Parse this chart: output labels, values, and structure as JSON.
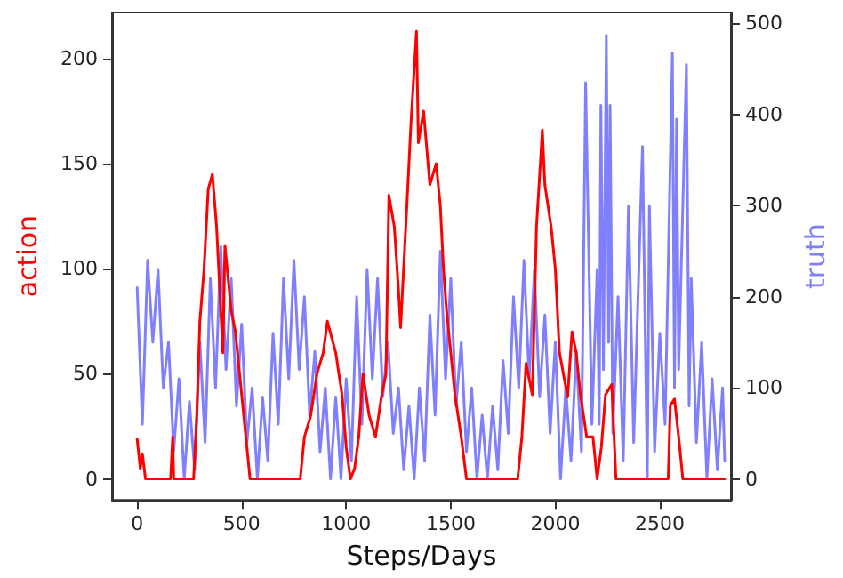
{
  "chart_data": {
    "type": "line",
    "xlabel": "Steps/Days",
    "ylabel": "action",
    "y2label": "truth",
    "xlim": [
      -120,
      2840
    ],
    "xticks": [
      0,
      500,
      1000,
      1500,
      2000,
      2500
    ],
    "ylim": [
      -10,
      222
    ],
    "yticks": [
      0,
      50,
      100,
      150,
      200
    ],
    "y2lim": [
      -23,
      512
    ],
    "y2ticks": [
      0,
      100,
      200,
      300,
      400,
      500
    ],
    "grid": false,
    "legend": false,
    "marker": "none",
    "line_style": "solid",
    "series": [
      {
        "color": "#8080ff",
        "axis": "y2",
        "x": [
          0,
          25,
          50,
          75,
          100,
          125,
          150,
          175,
          200,
          225,
          250,
          275,
          300,
          325,
          350,
          375,
          400,
          425,
          450,
          475,
          500,
          525,
          550,
          575,
          600,
          625,
          650,
          675,
          700,
          725,
          750,
          775,
          800,
          825,
          850,
          875,
          900,
          925,
          950,
          975,
          1000,
          1025,
          1050,
          1075,
          1100,
          1125,
          1150,
          1175,
          1200,
          1225,
          1250,
          1275,
          1300,
          1325,
          1350,
          1375,
          1400,
          1425,
          1450,
          1475,
          1500,
          1525,
          1550,
          1575,
          1600,
          1625,
          1650,
          1675,
          1700,
          1725,
          1750,
          1775,
          1800,
          1825,
          1850,
          1875,
          1900,
          1925,
          1950,
          1975,
          2000,
          2025,
          2050,
          2075,
          2100,
          2125,
          2145,
          2175,
          2200,
          2210,
          2218,
          2230,
          2244,
          2255,
          2262,
          2275,
          2300,
          2325,
          2350,
          2375,
          2417,
          2440,
          2450,
          2475,
          2500,
          2525,
          2560,
          2570,
          2580,
          2590,
          2627,
          2640,
          2650,
          2675,
          2700,
          2725,
          2750,
          2775,
          2800,
          2810
        ],
        "values": [
          210,
          60,
          240,
          150,
          230,
          100,
          150,
          30,
          110,
          0,
          85,
          10,
          150,
          40,
          220,
          100,
          255,
          120,
          220,
          80,
          170,
          40,
          100,
          0,
          90,
          20,
          160,
          60,
          220,
          110,
          240,
          120,
          200,
          70,
          140,
          30,
          100,
          0,
          90,
          0,
          110,
          20,
          200,
          60,
          230,
          110,
          220,
          90,
          150,
          50,
          100,
          10,
          80,
          0,
          100,
          20,
          180,
          70,
          250,
          110,
          220,
          80,
          150,
          30,
          100,
          0,
          70,
          0,
          80,
          10,
          130,
          50,
          200,
          100,
          240,
          110,
          230,
          90,
          180,
          50,
          150,
          0,
          100,
          20,
          140,
          30,
          435,
          60,
          230,
          60,
          410,
          120,
          487,
          150,
          410,
          50,
          200,
          20,
          300,
          40,
          365,
          0,
          300,
          30,
          160,
          60,
          467,
          100,
          395,
          120,
          455,
          80,
          220,
          40,
          150,
          0,
          110,
          10,
          100,
          20
        ]
      },
      {
        "color": "#ff0000",
        "axis": "y",
        "x": [
          0,
          15,
          25,
          40,
          160,
          170,
          175,
          270,
          285,
          300,
          320,
          340,
          360,
          380,
          395,
          410,
          420,
          450,
          470,
          500,
          520,
          540,
          780,
          800,
          830,
          860,
          890,
          910,
          950,
          980,
          1000,
          1020,
          1040,
          1060,
          1080,
          1110,
          1140,
          1170,
          1190,
          1204,
          1230,
          1250,
          1260,
          1290,
          1310,
          1336,
          1345,
          1370,
          1400,
          1430,
          1450,
          1465,
          1480,
          1500,
          1520,
          1550,
          1575,
          1820,
          1840,
          1860,
          1890,
          1910,
          1938,
          1950,
          1980,
          2000,
          2020,
          2059,
          2080,
          2100,
          2120,
          2150,
          2180,
          2200,
          2220,
          2240,
          2270,
          2290,
          2540,
          2550,
          2570,
          2590,
          2610,
          2810
        ],
        "values": [
          19,
          5,
          12,
          0,
          0,
          20,
          0,
          0,
          30,
          75,
          100,
          138,
          145,
          120,
          90,
          60,
          111,
          80,
          70,
          40,
          20,
          0,
          0,
          20,
          30,
          50,
          60,
          75,
          60,
          40,
          15,
          0,
          5,
          20,
          50,
          30,
          20,
          40,
          50,
          135,
          120,
          90,
          72,
          130,
          170,
          213,
          160,
          175,
          140,
          150,
          130,
          100,
          80,
          60,
          40,
          20,
          0,
          0,
          20,
          55,
          40,
          120,
          166,
          140,
          120,
          100,
          60,
          39,
          70,
          60,
          40,
          20,
          20,
          0,
          15,
          40,
          45,
          0,
          0,
          35,
          38,
          20,
          0,
          0
        ]
      }
    ]
  }
}
